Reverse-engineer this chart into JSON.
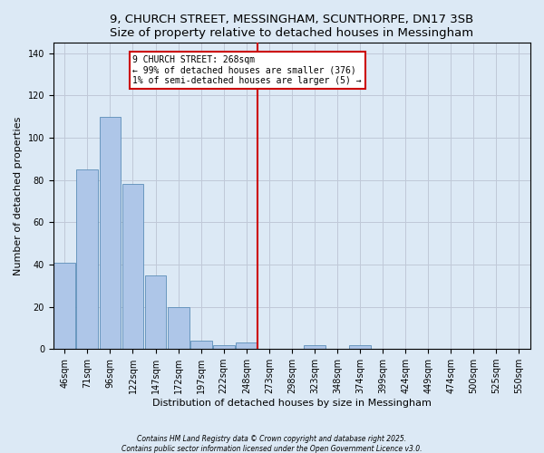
{
  "title": "9, CHURCH STREET, MESSINGHAM, SCUNTHORPE, DN17 3SB",
  "subtitle": "Size of property relative to detached houses in Messingham",
  "xlabel": "Distribution of detached houses by size in Messingham",
  "ylabel": "Number of detached properties",
  "footer1": "Contains HM Land Registry data © Crown copyright and database right 2025.",
  "footer2": "Contains public sector information licensed under the Open Government Licence v3.0.",
  "categories": [
    "46sqm",
    "71sqm",
    "96sqm",
    "122sqm",
    "147sqm",
    "172sqm",
    "197sqm",
    "222sqm",
    "248sqm",
    "273sqm",
    "298sqm",
    "323sqm",
    "348sqm",
    "374sqm",
    "399sqm",
    "424sqm",
    "449sqm",
    "474sqm",
    "500sqm",
    "525sqm",
    "550sqm"
  ],
  "values": [
    41,
    85,
    110,
    78,
    35,
    20,
    4,
    2,
    3,
    0,
    0,
    2,
    0,
    2,
    0,
    0,
    0,
    0,
    0,
    0,
    0
  ],
  "bar_color": "#aec6e8",
  "bar_edgecolor": "#5b8db8",
  "vline_index": 8.5,
  "vline_color": "#cc0000",
  "annotation_line1": "9 CHURCH STREET: 268sqm",
  "annotation_line2": "← 99% of detached houses are smaller (376)",
  "annotation_line3": "1% of semi-detached houses are larger (5) →",
  "annotation_box_color": "#cc0000",
  "ylim": [
    0,
    145
  ],
  "yticks": [
    0,
    20,
    40,
    60,
    80,
    100,
    120,
    140
  ],
  "background_color": "#dce9f5",
  "plot_bg_color": "#dce9f5",
  "grid_color": "#c0c8d8",
  "title_fontsize": 9.5,
  "axis_fontsize": 8,
  "tick_fontsize": 7,
  "footer_fontsize": 5.5
}
